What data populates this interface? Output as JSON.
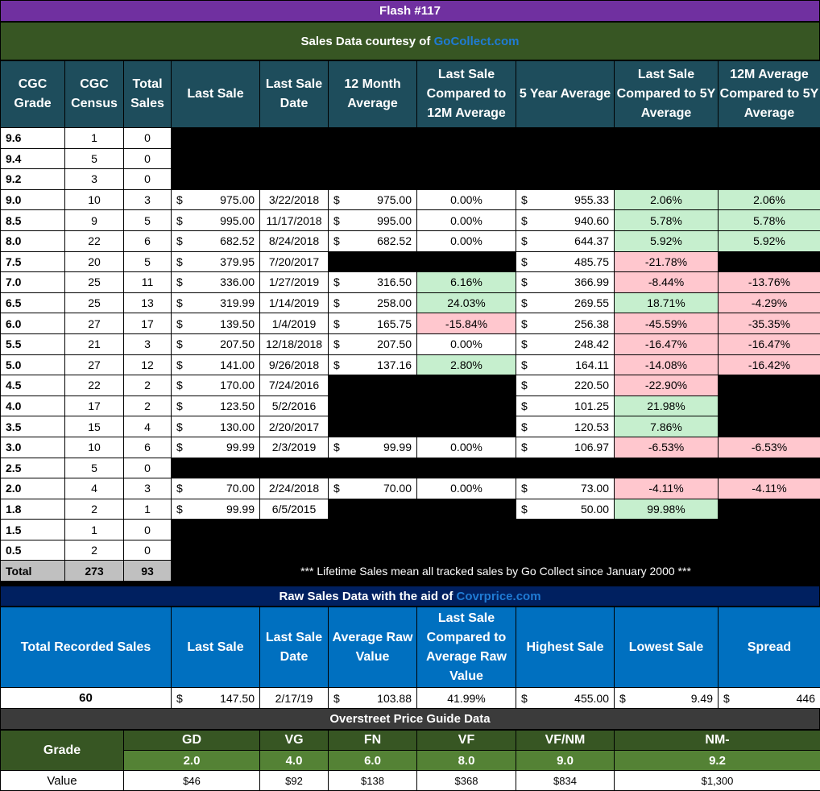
{
  "title": "Flash #117",
  "sales_header": {
    "prefix": "Sales Data courtesy of",
    "link": "GoCollect.com"
  },
  "main_headers": [
    "CGC Grade",
    "CGC Census",
    "Total Sales",
    "Last Sale",
    "Last Sale Date",
    "12 Month Average",
    "Last Sale Compared to 12M Average",
    "5 Year Average",
    "Last Sale Compared to 5Y Average",
    "12M Average Compared to 5Y Average"
  ],
  "currency": "$",
  "rows": [
    {
      "grade": "9.6",
      "census": "1",
      "sales": "0"
    },
    {
      "grade": "9.4",
      "census": "5",
      "sales": "0"
    },
    {
      "grade": "9.2",
      "census": "3",
      "sales": "0"
    },
    {
      "grade": "9.0",
      "census": "10",
      "sales": "3",
      "last_sale": "975.00",
      "date": "3/22/2018",
      "avg12": "975.00",
      "cmp12": "0.00%",
      "avg5": "955.33",
      "cmp5": "2.06%",
      "cmp125": "2.06%"
    },
    {
      "grade": "8.5",
      "census": "9",
      "sales": "5",
      "last_sale": "995.00",
      "date": "11/17/2018",
      "avg12": "995.00",
      "cmp12": "0.00%",
      "avg5": "940.60",
      "cmp5": "5.78%",
      "cmp125": "5.78%"
    },
    {
      "grade": "8.0",
      "census": "22",
      "sales": "6",
      "last_sale": "682.52",
      "date": "8/24/2018",
      "avg12": "682.52",
      "cmp12": "0.00%",
      "avg5": "644.37",
      "cmp5": "5.92%",
      "cmp125": "5.92%"
    },
    {
      "grade": "7.5",
      "census": "20",
      "sales": "5",
      "last_sale": "379.95",
      "date": "7/20/2017",
      "avg5": "485.75",
      "cmp5": "-21.78%"
    },
    {
      "grade": "7.0",
      "census": "25",
      "sales": "11",
      "last_sale": "336.00",
      "date": "1/27/2019",
      "avg12": "316.50",
      "cmp12": "6.16%",
      "avg5": "366.99",
      "cmp5": "-8.44%",
      "cmp125": "-13.76%"
    },
    {
      "grade": "6.5",
      "census": "25",
      "sales": "13",
      "last_sale": "319.99",
      "date": "1/14/2019",
      "avg12": "258.00",
      "cmp12": "24.03%",
      "avg5": "269.55",
      "cmp5": "18.71%",
      "cmp125": "-4.29%"
    },
    {
      "grade": "6.0",
      "census": "27",
      "sales": "17",
      "last_sale": "139.50",
      "date": "1/4/2019",
      "avg12": "165.75",
      "cmp12": "-15.84%",
      "avg5": "256.38",
      "cmp5": "-45.59%",
      "cmp125": "-35.35%"
    },
    {
      "grade": "5.5",
      "census": "21",
      "sales": "3",
      "last_sale": "207.50",
      "date": "12/18/2018",
      "avg12": "207.50",
      "cmp12": "0.00%",
      "avg5": "248.42",
      "cmp5": "-16.47%",
      "cmp125": "-16.47%"
    },
    {
      "grade": "5.0",
      "census": "27",
      "sales": "12",
      "last_sale": "141.00",
      "date": "9/26/2018",
      "avg12": "137.16",
      "cmp12": "2.80%",
      "avg5": "164.11",
      "cmp5": "-14.08%",
      "cmp125": "-16.42%"
    },
    {
      "grade": "4.5",
      "census": "22",
      "sales": "2",
      "last_sale": "170.00",
      "date": "7/24/2016",
      "avg5": "220.50",
      "cmp5": "-22.90%"
    },
    {
      "grade": "4.0",
      "census": "17",
      "sales": "2",
      "last_sale": "123.50",
      "date": "5/2/2016",
      "avg5": "101.25",
      "cmp5": "21.98%"
    },
    {
      "grade": "3.5",
      "census": "15",
      "sales": "4",
      "last_sale": "130.00",
      "date": "2/20/2017",
      "avg5": "120.53",
      "cmp5": "7.86%"
    },
    {
      "grade": "3.0",
      "census": "10",
      "sales": "6",
      "last_sale": "99.99",
      "date": "2/3/2019",
      "avg12": "99.99",
      "cmp12": "0.00%",
      "avg5": "106.97",
      "cmp5": "-6.53%",
      "cmp125": "-6.53%"
    },
    {
      "grade": "2.5",
      "census": "5",
      "sales": "0"
    },
    {
      "grade": "2.0",
      "census": "4",
      "sales": "3",
      "last_sale": "70.00",
      "date": "2/24/2018",
      "avg12": "70.00",
      "cmp12": "0.00%",
      "avg5": "73.00",
      "cmp5": "-4.11%",
      "cmp125": "-4.11%"
    },
    {
      "grade": "1.8",
      "census": "2",
      "sales": "1",
      "last_sale": "99.99",
      "date": "6/5/2015",
      "avg5": "50.00",
      "cmp5": "99.98%"
    },
    {
      "grade": "1.5",
      "census": "1",
      "sales": "0"
    },
    {
      "grade": "0.5",
      "census": "2",
      "sales": "0"
    }
  ],
  "total": {
    "label": "Total",
    "census": "273",
    "sales": "93"
  },
  "note": "*** Lifetime Sales mean all tracked sales by Go Collect since January 2000 ***",
  "raw_header": {
    "prefix": "Raw Sales Data with the aid of",
    "link": "Covrprice.com"
  },
  "raw_headers": [
    "Total Recorded Sales",
    "Last Sale",
    "Last Sale Date",
    "Average Raw Value",
    "Last Sale Compared to Average Raw Value",
    "Highest Sale",
    "Lowest Sale",
    "Spread"
  ],
  "raw_row": {
    "total": "60",
    "last_sale": "147.50",
    "date": "2/17/19",
    "avg": "103.88",
    "cmp": "41.99%",
    "high": "455.00",
    "low": "9.49",
    "spread": "446"
  },
  "overstreet_title": "Overstreet Price Guide Data",
  "overstreet": {
    "grade_label": "Grade",
    "value_label": "Value",
    "cols": [
      {
        "name": "GD",
        "grade": "2.0",
        "value": "$46"
      },
      {
        "name": "VG",
        "grade": "4.0",
        "value": "$92"
      },
      {
        "name": "FN",
        "grade": "6.0",
        "value": "$138"
      },
      {
        "name": "VF",
        "grade": "8.0",
        "value": "$368"
      },
      {
        "name": "VF/NM",
        "grade": "9.0",
        "value": "$834"
      },
      {
        "name": "NM-",
        "grade": "9.2",
        "value": "$1,300"
      }
    ]
  }
}
